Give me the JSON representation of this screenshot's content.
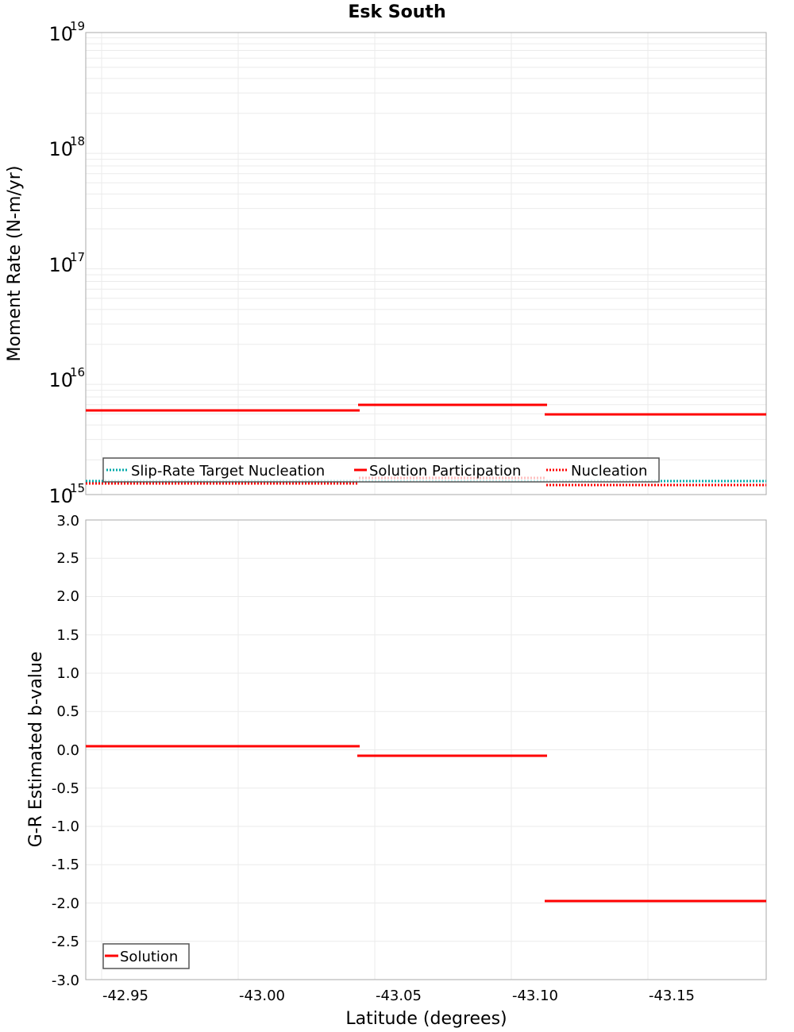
{
  "title": "Esk South",
  "top_plot": {
    "ylabel": "Moment Rate (N-m/yr)",
    "y_ticks": [
      {
        "base": "10",
        "exp": "19"
      },
      {
        "base": "10",
        "exp": "18"
      },
      {
        "base": "10",
        "exp": "17"
      },
      {
        "base": "10",
        "exp": "16"
      },
      {
        "base": "10",
        "exp": "15"
      }
    ],
    "legend": {
      "slip_rate": "Slip-Rate Target Nucleation",
      "participation": "Solution Participation",
      "nucleation": "Nucleation"
    }
  },
  "bottom_plot": {
    "ylabel": "G-R Estimated b-value",
    "y_ticks": [
      "3.0",
      "2.5",
      "2.0",
      "1.5",
      "1.0",
      "0.5",
      "0.0",
      "-0.5",
      "-1.0",
      "-1.5",
      "-2.0",
      "-2.5",
      "-3.0"
    ],
    "legend": {
      "solution": "Solution"
    }
  },
  "x_axis": {
    "label": "Latitude (degrees)",
    "ticks": [
      "-42.95",
      "-43.00",
      "-43.05",
      "-43.10",
      "-43.15"
    ]
  },
  "colors": {
    "solution": "#ff0000",
    "slip_rate_target": "#00aaaa",
    "grid": "#ebebeb",
    "frame": "#aaaaaa"
  },
  "chart_data": [
    {
      "type": "line",
      "title": "Esk South",
      "xlabel": "Latitude (degrees)",
      "ylabel": "Moment Rate (N-m/yr)",
      "yscale": "log",
      "ylim": [
        1000000000000000.0,
        1e+19
      ],
      "xlim": [
        -42.944,
        -43.193
      ],
      "grid": true,
      "legend_position": "lower-left",
      "series": [
        {
          "name": "Solution Participation",
          "style": "solid",
          "color": "#ff0000",
          "segments": [
            {
              "x": [
                -42.944,
                -43.044
              ],
              "y": 5400000000000000.0
            },
            {
              "x": [
                -43.044,
                -43.113
              ],
              "y": 6000000000000000.0
            },
            {
              "x": [
                -43.113,
                -43.193
              ],
              "y": 4900000000000000.0
            }
          ]
        },
        {
          "name": "Nucleation",
          "style": "dotted",
          "color": "#ff0000",
          "segments": [
            {
              "x": [
                -42.944,
                -43.044
              ],
              "y": 1250000000000000.0
            },
            {
              "x": [
                -43.044,
                -43.113
              ],
              "y": 1400000000000000.0
            },
            {
              "x": [
                -43.113,
                -43.193
              ],
              "y": 1200000000000000.0
            }
          ]
        },
        {
          "name": "Slip-Rate Target Nucleation",
          "style": "dotted",
          "color": "#00aaaa",
          "segments": [
            {
              "x": [
                -42.944,
                -43.193
              ],
              "y": 1300000000000000.0
            }
          ]
        }
      ]
    },
    {
      "type": "line",
      "xlabel": "Latitude (degrees)",
      "ylabel": "G-R Estimated b-value",
      "ylim": [
        -3.0,
        3.0
      ],
      "xlim": [
        -42.944,
        -43.193
      ],
      "x_ticks": [
        "-42.95",
        "-43.00",
        "-43.05",
        "-43.10",
        "-43.15"
      ],
      "grid": true,
      "legend_position": "lower-left",
      "series": [
        {
          "name": "Solution",
          "style": "solid",
          "color": "#ff0000",
          "segments": [
            {
              "x": [
                -42.944,
                -43.044
              ],
              "y": 0.05
            },
            {
              "x": [
                -43.044,
                -43.113
              ],
              "y": -0.08
            },
            {
              "x": [
                -43.113,
                -43.193
              ],
              "y": -1.97
            }
          ]
        }
      ]
    }
  ]
}
